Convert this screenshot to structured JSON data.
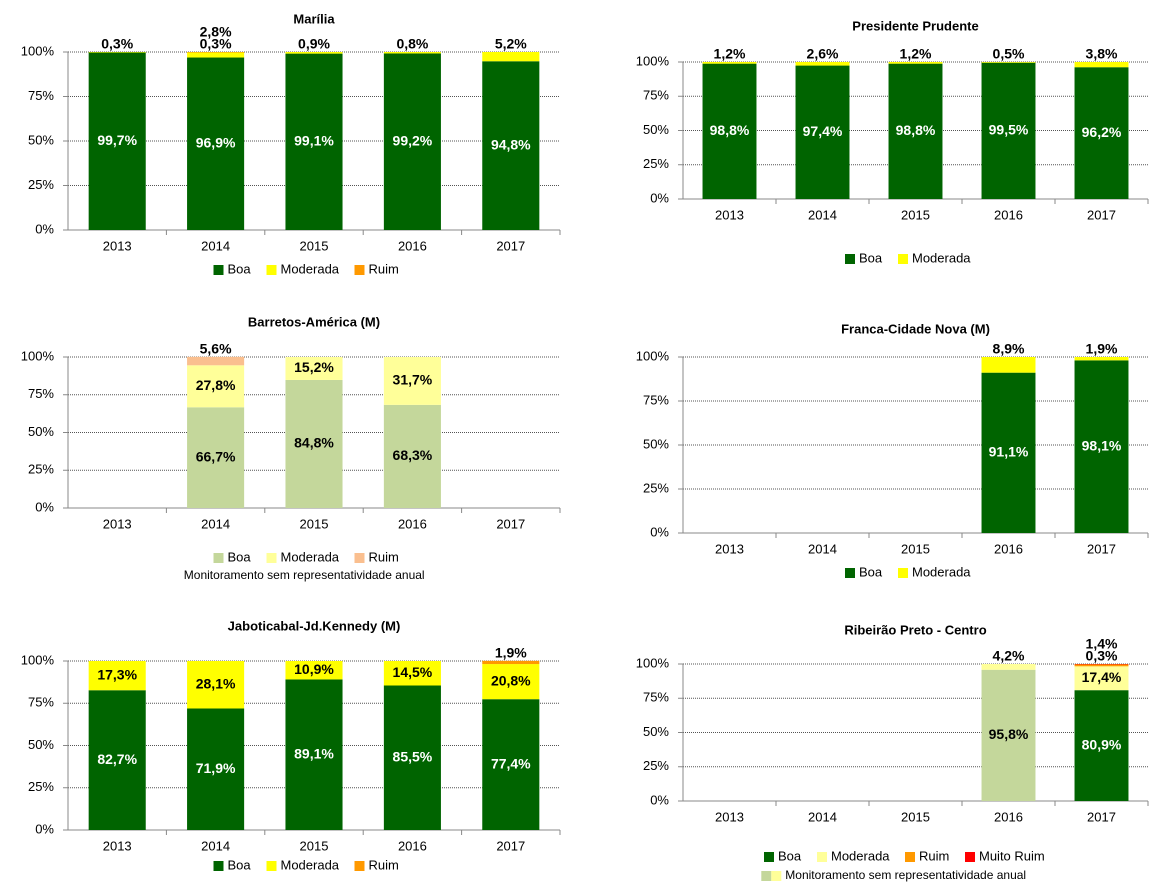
{
  "chart_data": [
    {
      "type": "bar",
      "stacked": true,
      "title": "Marília",
      "grid": true,
      "legend": "bottom",
      "categories": [
        "2013",
        "2014",
        "2015",
        "2016",
        "2017"
      ],
      "ylim": [
        0,
        100
      ],
      "yticks": [
        {
          "value": 0,
          "label": "0%"
        },
        {
          "value": 25,
          "label": "25%"
        },
        {
          "value": 50,
          "label": "50%"
        },
        {
          "value": 75,
          "label": "75%"
        },
        {
          "value": 100,
          "label": "100%"
        }
      ],
      "series": [
        {
          "name": "Boa",
          "color": "#006400",
          "values": [
            99.7,
            96.9,
            99.1,
            99.2,
            94.8
          ],
          "value_labels": [
            "99,7%",
            "96,9%",
            "99,1%",
            "99,2%",
            "94,8%"
          ]
        },
        {
          "name": "Moderada",
          "color": "#ffff00",
          "values": [
            0.3,
            2.8,
            0.9,
            0.8,
            5.2
          ],
          "value_labels": [
            "0,3%",
            "2,8%",
            "0,9%",
            "0,8%",
            "5,2%"
          ]
        },
        {
          "name": "Ruim",
          "color": "#ff9900",
          "values": [
            null,
            0.3,
            null,
            null,
            null
          ],
          "value_labels": [
            null,
            "0,3%",
            null,
            null,
            null
          ]
        }
      ]
    },
    {
      "type": "bar",
      "stacked": true,
      "title": "Presidente Prudente",
      "grid": true,
      "legend": "bottom",
      "categories": [
        "2013",
        "2014",
        "2015",
        "2016",
        "2017"
      ],
      "ylim": [
        0,
        100
      ],
      "yticks": [
        {
          "value": 0,
          "label": "0%"
        },
        {
          "value": 25,
          "label": "25%"
        },
        {
          "value": 50,
          "label": "50%"
        },
        {
          "value": 75,
          "label": "75%"
        },
        {
          "value": 100,
          "label": "100%"
        }
      ],
      "series": [
        {
          "name": "Boa",
          "color": "#006400",
          "values": [
            98.8,
            97.4,
            98.8,
            99.5,
            96.2
          ],
          "value_labels": [
            "98,8%",
            "97,4%",
            "98,8%",
            "99,5%",
            "96,2%"
          ]
        },
        {
          "name": "Moderada",
          "color": "#ffff00",
          "values": [
            1.2,
            2.6,
            1.2,
            0.5,
            3.8
          ],
          "value_labels": [
            "1,2%",
            "2,6%",
            "1,2%",
            "0,5%",
            "3,8%"
          ]
        }
      ]
    },
    {
      "type": "bar",
      "stacked": true,
      "title": "Barretos-América (M)",
      "grid": true,
      "legend": "bottom",
      "note": "Monitoramento sem representatividade anual",
      "categories": [
        "2013",
        "2014",
        "2015",
        "2016",
        "2017"
      ],
      "ylim": [
        0,
        100
      ],
      "yticks": [
        {
          "value": 0,
          "label": "0%"
        },
        {
          "value": 25,
          "label": "25%"
        },
        {
          "value": 50,
          "label": "50%"
        },
        {
          "value": 75,
          "label": "75%"
        },
        {
          "value": 100,
          "label": "100%"
        }
      ],
      "series": [
        {
          "name": "Boa",
          "color": "#c4d79b",
          "values": [
            null,
            66.7,
            84.8,
            68.3,
            null
          ],
          "value_labels": [
            null,
            "66,7%",
            "84,8%",
            "68,3%",
            null
          ]
        },
        {
          "name": "Moderada",
          "color": "#ffff99",
          "values": [
            null,
            27.8,
            15.2,
            31.7,
            null
          ],
          "value_labels": [
            null,
            "27,8%",
            "15,2%",
            "31,7%",
            null
          ]
        },
        {
          "name": "Ruim",
          "color": "#fabf8f",
          "values": [
            null,
            5.6,
            null,
            null,
            null
          ],
          "value_labels": [
            null,
            "5,6%",
            null,
            null,
            null
          ]
        }
      ]
    },
    {
      "type": "bar",
      "stacked": true,
      "title": "Franca-Cidade Nova (M)",
      "grid": true,
      "legend": "bottom",
      "categories": [
        "2013",
        "2014",
        "2015",
        "2016",
        "2017"
      ],
      "ylim": [
        0,
        100
      ],
      "yticks": [
        {
          "value": 0,
          "label": "0%"
        },
        {
          "value": 25,
          "label": "25%"
        },
        {
          "value": 50,
          "label": "50%"
        },
        {
          "value": 75,
          "label": "75%"
        },
        {
          "value": 100,
          "label": "100%"
        }
      ],
      "series": [
        {
          "name": "Boa",
          "color": "#006400",
          "values": [
            null,
            null,
            null,
            91.1,
            98.1
          ],
          "value_labels": [
            null,
            null,
            null,
            "91,1%",
            "98,1%"
          ]
        },
        {
          "name": "Moderada",
          "color": "#ffff00",
          "values": [
            null,
            null,
            null,
            8.9,
            1.9
          ],
          "value_labels": [
            null,
            null,
            null,
            "8,9%",
            "1,9%"
          ]
        }
      ]
    },
    {
      "type": "bar",
      "stacked": true,
      "title": "Jaboticabal-Jd.Kennedy (M)",
      "grid": true,
      "legend": "bottom",
      "categories": [
        "2013",
        "2014",
        "2015",
        "2016",
        "2017"
      ],
      "ylim": [
        0,
        100
      ],
      "yticks": [
        {
          "value": 0,
          "label": "0%"
        },
        {
          "value": 25,
          "label": "25%"
        },
        {
          "value": 50,
          "label": "50%"
        },
        {
          "value": 75,
          "label": "75%"
        },
        {
          "value": 100,
          "label": "100%"
        }
      ],
      "series": [
        {
          "name": "Boa",
          "color": "#006400",
          "values": [
            82.7,
            71.9,
            89.1,
            85.5,
            77.4
          ],
          "value_labels": [
            "82,7%",
            "71,9%",
            "89,1%",
            "85,5%",
            "77,4%"
          ]
        },
        {
          "name": "Moderada",
          "color": "#ffff00",
          "values": [
            17.3,
            28.1,
            10.9,
            14.5,
            20.8
          ],
          "value_labels": [
            "17,3%",
            "28,1%",
            "10,9%",
            "14,5%",
            "20,8%"
          ]
        },
        {
          "name": "Ruim",
          "color": "#ff9900",
          "values": [
            null,
            null,
            null,
            null,
            1.9
          ],
          "value_labels": [
            null,
            null,
            null,
            null,
            "1,9%"
          ]
        }
      ]
    },
    {
      "type": "bar",
      "stacked": true,
      "title": "Ribeirão Preto - Centro",
      "grid": true,
      "legend": "bottom",
      "note": "Monitoramento sem representatividade anual",
      "note_colors": [
        "#c4d79b",
        "#ffff99"
      ],
      "categories": [
        "2013",
        "2014",
        "2015",
        "2016",
        "2017"
      ],
      "ylim": [
        0,
        100
      ],
      "yticks": [
        {
          "value": 0,
          "label": "0%"
        },
        {
          "value": 25,
          "label": "25%"
        },
        {
          "value": 50,
          "label": "50%"
        },
        {
          "value": 75,
          "label": "75%"
        },
        {
          "value": 100,
          "label": "100%"
        }
      ],
      "series": [
        {
          "name": "Boa",
          "color": "#006400",
          "colors": [
            null,
            null,
            null,
            "#c4d79b",
            "#006400"
          ],
          "values": [
            null,
            null,
            null,
            95.8,
            80.9
          ],
          "value_labels": [
            null,
            null,
            null,
            "95,8%",
            "80,9%"
          ]
        },
        {
          "name": "Moderada",
          "color": "#ffff99",
          "colors": [
            null,
            null,
            null,
            "#ffff99",
            "#ffff99"
          ],
          "values": [
            null,
            null,
            null,
            4.2,
            17.4
          ],
          "value_labels": [
            null,
            null,
            null,
            "4,2%",
            "17,4%"
          ]
        },
        {
          "name": "Ruim",
          "color": "#ff9900",
          "values": [
            null,
            null,
            null,
            null,
            1.4
          ],
          "value_labels": [
            null,
            null,
            null,
            null,
            "1,4%"
          ]
        },
        {
          "name": "Muito Ruim",
          "color": "#ff0000",
          "values": [
            null,
            null,
            null,
            null,
            0.3
          ],
          "value_labels": [
            null,
            null,
            null,
            null,
            "0,3%"
          ]
        }
      ]
    }
  ]
}
